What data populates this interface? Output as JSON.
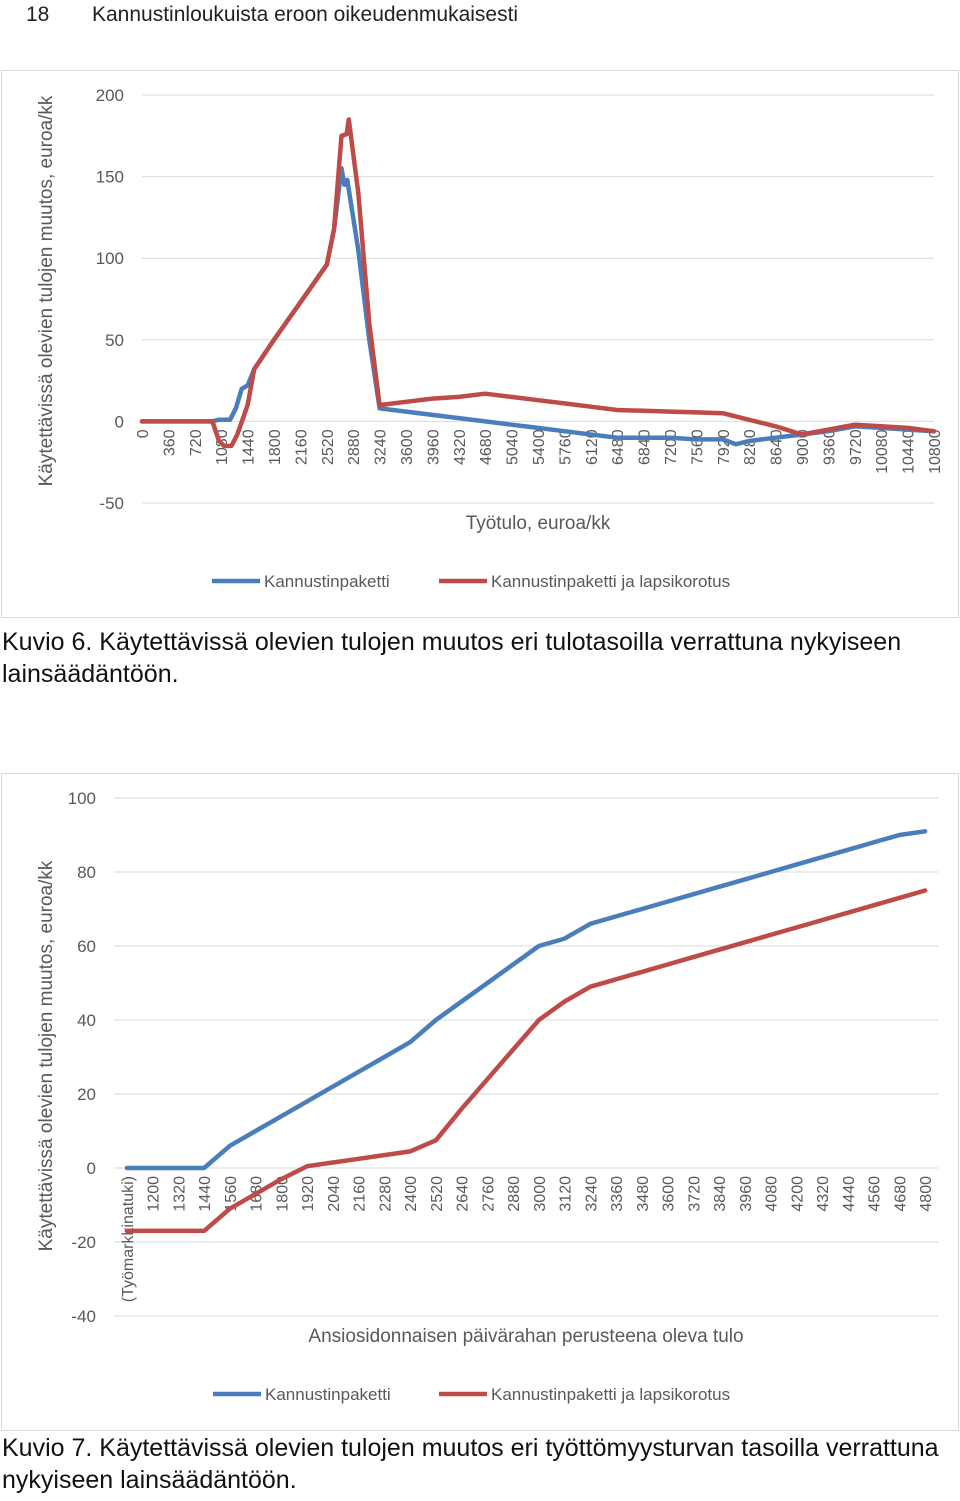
{
  "header": {
    "page_number": "18",
    "running_title": "Kannustinloukuista eroon oikeudenmukaisesti"
  },
  "colors": {
    "blue": "#4a7ebb",
    "red": "#be4b48",
    "grid": "#d9d9d9",
    "axis_text": "#595959"
  },
  "chart_data": [
    {
      "type": "line",
      "ylabel": "Käytettävissä olevien tulojen muutos, euroa/kk",
      "xlabel": "Työtulo, euroa/kk",
      "ylim": [
        -50,
        200
      ],
      "yticks": [
        -50,
        0,
        50,
        100,
        150,
        200
      ],
      "xlim": [
        0,
        10800
      ],
      "xticks": [
        "0",
        "360",
        "720",
        "1080",
        "1440",
        "1800",
        "2160",
        "2520",
        "2880",
        "3240",
        "3600",
        "3960",
        "4320",
        "4680",
        "5040",
        "5400",
        "5760",
        "6120",
        "6480",
        "6840",
        "7200",
        "7560",
        "7920",
        "8280",
        "8640",
        "9000",
        "9360",
        "9720",
        "10080",
        "10440",
        "10800"
      ],
      "grid": true,
      "legend": "bottom",
      "series": [
        {
          "name": "Kannustinpaketti",
          "color": "#4a7ebb",
          "points": [
            [
              0,
              0
            ],
            [
              900,
              0
            ],
            [
              960,
              0
            ],
            [
              1040,
              1
            ],
            [
              1200,
              1
            ],
            [
              1280,
              8
            ],
            [
              1360,
              20
            ],
            [
              1440,
              22
            ],
            [
              1530,
              32
            ],
            [
              1800,
              50
            ],
            [
              2160,
              73
            ],
            [
              2520,
              96
            ],
            [
              2620,
              118
            ],
            [
              2720,
              155
            ],
            [
              2760,
              145
            ],
            [
              2800,
              148
            ],
            [
              2820,
              142
            ],
            [
              2950,
              105
            ],
            [
              3100,
              50
            ],
            [
              3240,
              8
            ],
            [
              3600,
              6
            ],
            [
              3960,
              4
            ],
            [
              4320,
              2
            ],
            [
              4680,
              0
            ],
            [
              5040,
              -2
            ],
            [
              5400,
              -4
            ],
            [
              5760,
              -6
            ],
            [
              6120,
              -8
            ],
            [
              6480,
              -10
            ],
            [
              6840,
              -10
            ],
            [
              7200,
              -10
            ],
            [
              7560,
              -11
            ],
            [
              7920,
              -11
            ],
            [
              8100,
              -14
            ],
            [
              8280,
              -12
            ],
            [
              8640,
              -10
            ],
            [
              9000,
              -8
            ],
            [
              9360,
              -6
            ],
            [
              9720,
              -3
            ],
            [
              10080,
              -4
            ],
            [
              10440,
              -5
            ],
            [
              10800,
              -6
            ]
          ]
        },
        {
          "name": "Kannustinpaketti ja lapsikorotus",
          "color": "#be4b48",
          "points": [
            [
              0,
              0
            ],
            [
              900,
              0
            ],
            [
              960,
              0
            ],
            [
              1050,
              -12
            ],
            [
              1120,
              -15
            ],
            [
              1220,
              -15
            ],
            [
              1300,
              -8
            ],
            [
              1440,
              10
            ],
            [
              1530,
              32
            ],
            [
              1800,
              50
            ],
            [
              2160,
              73
            ],
            [
              2520,
              96
            ],
            [
              2620,
              118
            ],
            [
              2720,
              175
            ],
            [
              2790,
              176
            ],
            [
              2820,
              185
            ],
            [
              2950,
              140
            ],
            [
              3100,
              60
            ],
            [
              3240,
              10
            ],
            [
              3600,
              12
            ],
            [
              3960,
              14
            ],
            [
              4320,
              15
            ],
            [
              4680,
              17
            ],
            [
              5040,
              15
            ],
            [
              5400,
              13
            ],
            [
              5760,
              11
            ],
            [
              6120,
              9
            ],
            [
              6480,
              7
            ],
            [
              6840,
              6.5
            ],
            [
              7200,
              6
            ],
            [
              7560,
              5.5
            ],
            [
              7920,
              5
            ],
            [
              8280,
              1
            ],
            [
              8640,
              -3
            ],
            [
              9000,
              -8
            ],
            [
              9360,
              -5
            ],
            [
              9720,
              -2
            ],
            [
              10080,
              -3
            ],
            [
              10440,
              -4
            ],
            [
              10800,
              -6
            ]
          ]
        }
      ]
    },
    {
      "type": "line",
      "ylabel": "Käytettävissä olevien tulojen muutos, euroa/kk",
      "xlabel": "Ansiosidonnaisen päivärahan perusteena oleva tulo",
      "ylim": [
        -40,
        100
      ],
      "yticks": [
        -40,
        -20,
        0,
        20,
        40,
        60,
        80,
        100
      ],
      "categories": [
        "(Työmarkkinatuki)",
        "1200",
        "1320",
        "1440",
        "1560",
        "1680",
        "1800",
        "1920",
        "2040",
        "2160",
        "2280",
        "2400",
        "2520",
        "2640",
        "2760",
        "2880",
        "3000",
        "3120",
        "3240",
        "3360",
        "3480",
        "3600",
        "3720",
        "3840",
        "3960",
        "4080",
        "4200",
        "4320",
        "4440",
        "4560",
        "4680",
        "4800"
      ],
      "grid": true,
      "legend": "bottom",
      "series": [
        {
          "name": "Kannustinpaketti",
          "color": "#4a7ebb",
          "values": [
            0,
            0,
            0,
            0,
            6,
            10,
            14,
            18,
            22,
            26,
            30,
            34,
            40,
            45,
            50,
            55,
            60,
            62,
            66,
            68,
            70,
            72,
            74,
            76,
            78,
            80,
            82,
            84,
            86,
            88,
            90,
            91
          ]
        },
        {
          "name": "Kannustinpaketti ja lapsikorotus",
          "color": "#be4b48",
          "values": [
            -17,
            -17,
            -17,
            -17,
            -11,
            -7,
            -3,
            0.5,
            1.5,
            2.5,
            3.5,
            4.5,
            7.5,
            16,
            24,
            32,
            40,
            45,
            49,
            51,
            53,
            55,
            57,
            59,
            61,
            63,
            65,
            67,
            69,
            71,
            73,
            75
          ]
        }
      ]
    }
  ],
  "captions": {
    "fig6": "Kuvio 6. Käytettävissä olevien tulojen muutos eri tulotasoilla verrattuna nykyiseen lainsäädäntöön.",
    "fig7": "Kuvio 7. Käytettävissä olevien tulojen muutos eri työttömyysturvan tasoilla verrattuna nykyiseen lainsäädäntöön."
  }
}
